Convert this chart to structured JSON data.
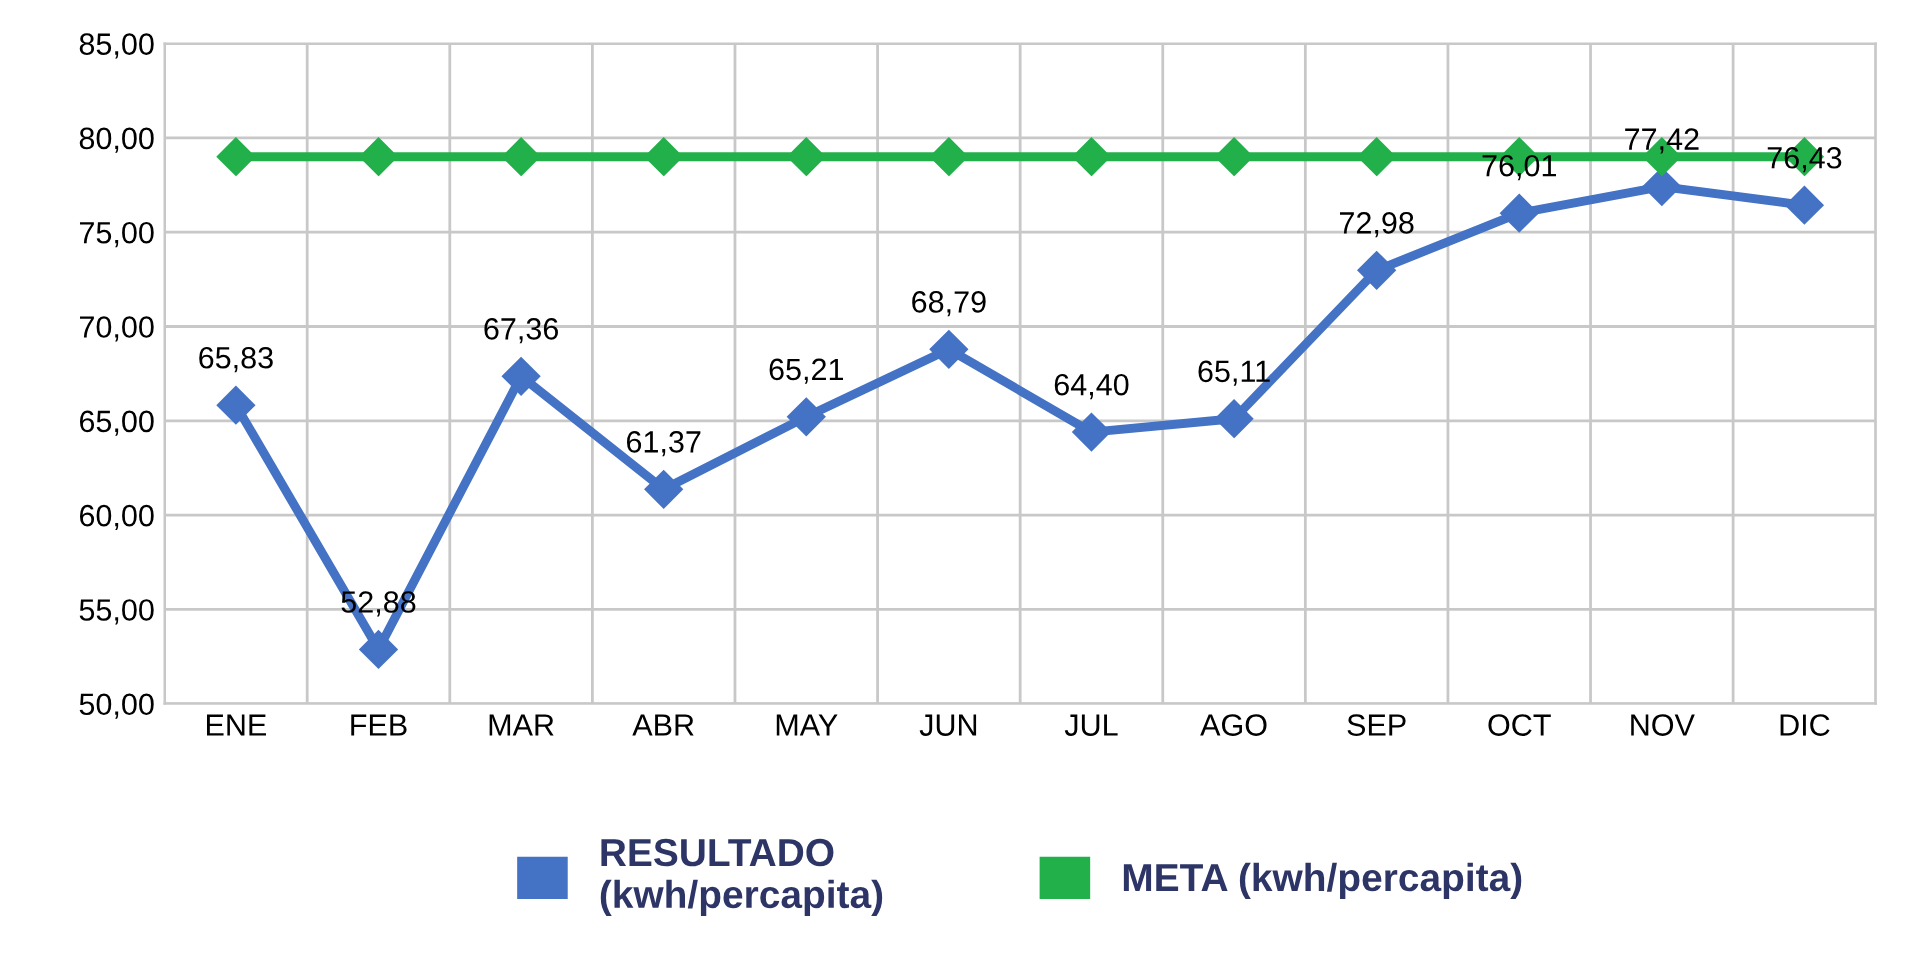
{
  "chart_data": {
    "type": "line",
    "categories": [
      "ENE",
      "FEB",
      "MAR",
      "ABR",
      "MAY",
      "JUN",
      "JUL",
      "AGO",
      "SEP",
      "OCT",
      "NOV",
      "DIC"
    ],
    "series": [
      {
        "name": "RESULTADO\n(kwh/percapita)",
        "color": "#4472c4",
        "values": [
          65.83,
          52.88,
          67.36,
          61.37,
          65.21,
          68.79,
          64.4,
          65.11,
          72.98,
          76.01,
          77.42,
          76.43
        ],
        "value_labels": [
          "65,83",
          "52,88",
          "67,36",
          "61,37",
          "65,21",
          "68,79",
          "64,40",
          "65,11",
          "72,98",
          "76,01",
          "77,42",
          "76,43"
        ]
      },
      {
        "name": "META (kwh/percapita)",
        "color": "#22b04a",
        "values": [
          79,
          79,
          79,
          79,
          79,
          79,
          79,
          79,
          79,
          79,
          79,
          79
        ]
      }
    ],
    "ylim": [
      50,
      85
    ],
    "yticks": [
      {
        "value": 50,
        "label": "50,00"
      },
      {
        "value": 55,
        "label": "55,00"
      },
      {
        "value": 60,
        "label": "60,00"
      },
      {
        "value": 65,
        "label": "65,00"
      },
      {
        "value": 70,
        "label": "70,00"
      },
      {
        "value": 75,
        "label": "75,00"
      },
      {
        "value": 80,
        "label": "80,00"
      },
      {
        "value": 85,
        "label": "85,00"
      }
    ],
    "grid": true,
    "legend": "bottom",
    "marker": "diamond",
    "line_style": "solid"
  }
}
